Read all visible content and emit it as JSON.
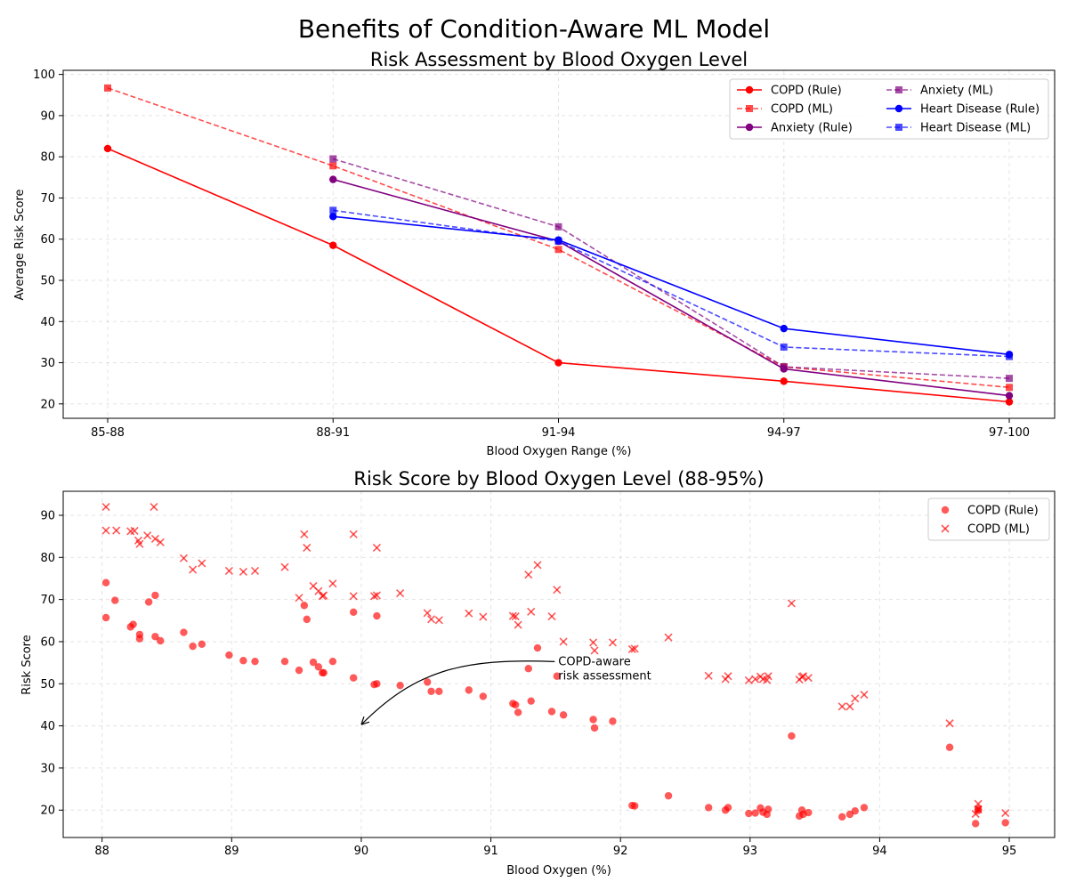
{
  "suptitle": "Benefits of Condition-Aware ML Model",
  "chart_data": [
    {
      "type": "line",
      "title": "Risk Assessment by Blood Oxygen Level",
      "xlabel": "Blood Oxygen Range (%)",
      "ylabel": "Average Risk Score",
      "categories": [
        "85-88",
        "88-91",
        "91-94",
        "94-97",
        "97-100"
      ],
      "ylim": [
        16.5,
        101
      ],
      "yticks": [
        20,
        30,
        40,
        50,
        60,
        70,
        80,
        90,
        100
      ],
      "grid": true,
      "legend_position": "top-right",
      "series": [
        {
          "name": "COPD (Rule)",
          "color": "#ff0000",
          "style": "solid",
          "marker": "circle",
          "opacity": 1,
          "values": [
            82,
            58.5,
            30,
            25.5,
            20.5
          ]
        },
        {
          "name": "COPD (ML)",
          "color": "#ff0000",
          "style": "dashed",
          "marker": "square",
          "opacity": 0.7,
          "values": [
            96.7,
            77.8,
            57.5,
            29,
            24
          ]
        },
        {
          "name": "Anxiety (Rule)",
          "color": "#800080",
          "style": "solid",
          "marker": "circle",
          "opacity": 1,
          "values": [
            null,
            74.5,
            59.5,
            28.5,
            22
          ]
        },
        {
          "name": "Anxiety (ML)",
          "color": "#800080",
          "style": "dashed",
          "marker": "square",
          "opacity": 0.7,
          "values": [
            null,
            79.5,
            63,
            29,
            26.2
          ]
        },
        {
          "name": "Heart Disease (Rule)",
          "color": "#0000ff",
          "style": "solid",
          "marker": "circle",
          "opacity": 1,
          "values": [
            null,
            65.5,
            59.8,
            38.3,
            32
          ]
        },
        {
          "name": "Heart Disease (ML)",
          "color": "#0000ff",
          "style": "dashed",
          "marker": "square",
          "opacity": 0.7,
          "values": [
            null,
            67,
            59.5,
            33.8,
            31.5
          ]
        }
      ]
    },
    {
      "type": "scatter",
      "title": "Risk Score by Blood Oxygen Level (88-95%)",
      "xlabel": "Blood Oxygen (%)",
      "ylabel": "Risk Score",
      "xlim": [
        87.7,
        95.35
      ],
      "ylim": [
        13.5,
        95.7
      ],
      "xticks": [
        88,
        89,
        90,
        91,
        92,
        93,
        94,
        95
      ],
      "yticks": [
        20,
        30,
        40,
        50,
        60,
        70,
        80,
        90
      ],
      "grid": true,
      "legend_position": "top-right",
      "annotation": {
        "lines": [
          "COPD-aware",
          "risk assessment"
        ],
        "text_at": [
          91.52,
          54
        ],
        "arrow_to": [
          90.0,
          40.3
        ]
      },
      "series": [
        {
          "name": "COPD (Rule)",
          "color": "#ff0000",
          "marker": "circle",
          "opacity": 0.65,
          "points": [
            [
              88.03,
              74
            ],
            [
              88.03,
              65.7
            ],
            [
              88.1,
              69.8
            ],
            [
              88.22,
              63.5
            ],
            [
              88.24,
              64.1
            ],
            [
              88.29,
              61.7
            ],
            [
              88.29,
              60.7
            ],
            [
              88.36,
              69.4
            ],
            [
              88.41,
              61.2
            ],
            [
              88.41,
              71
            ],
            [
              88.45,
              60.2
            ],
            [
              88.63,
              62.2
            ],
            [
              88.7,
              58.9
            ],
            [
              88.77,
              59.4
            ],
            [
              88.98,
              56.8
            ],
            [
              89.09,
              55.5
            ],
            [
              89.18,
              55.3
            ],
            [
              89.41,
              55.3
            ],
            [
              89.52,
              53.2
            ],
            [
              89.56,
              68.6
            ],
            [
              89.58,
              65.3
            ],
            [
              89.63,
              55.1
            ],
            [
              89.67,
              54
            ],
            [
              89.7,
              52.6
            ],
            [
              89.71,
              52.6
            ],
            [
              89.78,
              55.3
            ],
            [
              89.94,
              51.4
            ],
            [
              89.94,
              67
            ],
            [
              90.1,
              49.8
            ],
            [
              90.12,
              66.1
            ],
            [
              90.12,
              50
            ],
            [
              90.3,
              49.6
            ],
            [
              90.51,
              50.4
            ],
            [
              90.54,
              48.2
            ],
            [
              90.6,
              48.2
            ],
            [
              90.83,
              48.5
            ],
            [
              90.94,
              47
            ],
            [
              91.17,
              45.3
            ],
            [
              91.19,
              45
            ],
            [
              91.21,
              43.2
            ],
            [
              91.29,
              53.6
            ],
            [
              91.31,
              45.9
            ],
            [
              91.36,
              58.5
            ],
            [
              91.47,
              43.4
            ],
            [
              91.51,
              51.8
            ],
            [
              91.56,
              42.6
            ],
            [
              91.79,
              41.5
            ],
            [
              91.8,
              39.5
            ],
            [
              91.94,
              41.1
            ],
            [
              92.09,
              21.1
            ],
            [
              92.11,
              21
            ],
            [
              92.37,
              23.4
            ],
            [
              92.68,
              20.6
            ],
            [
              92.81,
              20
            ],
            [
              92.83,
              20.6
            ],
            [
              92.99,
              19.2
            ],
            [
              93.04,
              19.3
            ],
            [
              93.08,
              20.5
            ],
            [
              93.1,
              19.5
            ],
            [
              93.13,
              19
            ],
            [
              93.14,
              20.2
            ],
            [
              93.32,
              37.6
            ],
            [
              93.38,
              18.6
            ],
            [
              93.4,
              20
            ],
            [
              93.41,
              19
            ],
            [
              93.45,
              19.4
            ],
            [
              93.71,
              18.4
            ],
            [
              93.77,
              19
            ],
            [
              93.81,
              19.8
            ],
            [
              93.88,
              20.6
            ],
            [
              94.54,
              34.9
            ],
            [
              94.74,
              16.8
            ],
            [
              94.76,
              19.9
            ],
            [
              94.76,
              20.3
            ],
            [
              94.97,
              17
            ]
          ]
        },
        {
          "name": "COPD (ML)",
          "color": "#ff0000",
          "marker": "x",
          "opacity": 0.65,
          "points": [
            [
              88.03,
              92
            ],
            [
              88.03,
              86.4
            ],
            [
              88.11,
              86.4
            ],
            [
              88.22,
              86.2
            ],
            [
              88.25,
              86.3
            ],
            [
              88.28,
              84
            ],
            [
              88.29,
              83.2
            ],
            [
              88.35,
              85.2
            ],
            [
              88.4,
              92
            ],
            [
              88.41,
              84.4
            ],
            [
              88.45,
              83.6
            ],
            [
              88.63,
              79.8
            ],
            [
              88.7,
              77.1
            ],
            [
              88.77,
              78.6
            ],
            [
              88.98,
              76.8
            ],
            [
              89.09,
              76.6
            ],
            [
              89.18,
              76.8
            ],
            [
              89.41,
              77.7
            ],
            [
              89.52,
              70.4
            ],
            [
              89.56,
              85.5
            ],
            [
              89.58,
              82.3
            ],
            [
              89.63,
              73.2
            ],
            [
              89.67,
              72
            ],
            [
              89.7,
              70.8
            ],
            [
              89.71,
              71
            ],
            [
              89.78,
              73.8
            ],
            [
              89.94,
              70.8
            ],
            [
              89.94,
              85.5
            ],
            [
              90.1,
              70.8
            ],
            [
              90.12,
              82.3
            ],
            [
              90.12,
              71
            ],
            [
              90.3,
              71.5
            ],
            [
              90.51,
              66.8
            ],
            [
              90.54,
              65.3
            ],
            [
              90.6,
              65.1
            ],
            [
              90.83,
              66.7
            ],
            [
              90.94,
              65.9
            ],
            [
              91.17,
              66.1
            ],
            [
              91.19,
              66
            ],
            [
              91.21,
              64
            ],
            [
              91.29,
              75.9
            ],
            [
              91.31,
              67.1
            ],
            [
              91.36,
              78.2
            ],
            [
              91.47,
              66
            ],
            [
              91.51,
              72.3
            ],
            [
              91.56,
              60
            ],
            [
              91.79,
              59.8
            ],
            [
              91.8,
              57.9
            ],
            [
              91.94,
              59.8
            ],
            [
              92.09,
              58.2
            ],
            [
              92.11,
              58.3
            ],
            [
              92.37,
              61
            ],
            [
              92.68,
              51.9
            ],
            [
              92.81,
              51.1
            ],
            [
              92.83,
              51.8
            ],
            [
              92.99,
              50.8
            ],
            [
              93.04,
              51.1
            ],
            [
              93.08,
              51.7
            ],
            [
              93.1,
              51.1
            ],
            [
              93.13,
              50.9
            ],
            [
              93.14,
              51.8
            ],
            [
              93.32,
              69.1
            ],
            [
              93.38,
              51
            ],
            [
              93.4,
              51.6
            ],
            [
              93.41,
              51.8
            ],
            [
              93.45,
              51.4
            ],
            [
              93.71,
              44.6
            ],
            [
              93.77,
              44.6
            ],
            [
              93.81,
              46.5
            ],
            [
              93.88,
              47.4
            ],
            [
              94.54,
              40.6
            ],
            [
              94.74,
              19.1
            ],
            [
              94.76,
              21.5
            ],
            [
              94.76,
              20.2
            ],
            [
              94.97,
              19.3
            ]
          ]
        }
      ]
    }
  ]
}
